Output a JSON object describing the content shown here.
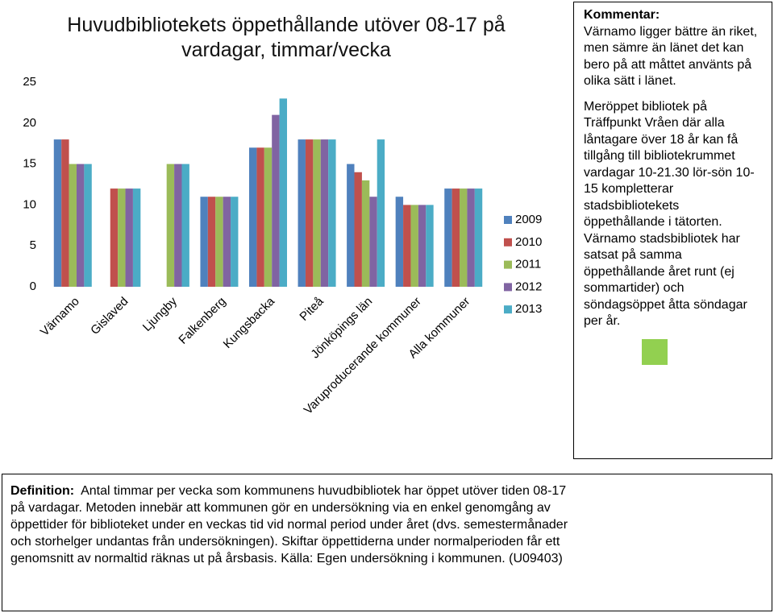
{
  "chart_data": {
    "type": "bar",
    "title": "Huvudbibliotekets öppethållande utöver 08-17 på vardagar, timmar/vecka",
    "categories": [
      "Värnamo",
      "Gislaved",
      "Ljungby",
      "Falkenberg",
      "Kungsbacka",
      "Piteå",
      "Jönköpings län",
      "Varuproducerande kommuner",
      "Alla kommuner"
    ],
    "series": [
      {
        "name": "2009",
        "color": "#4f81bd",
        "values": [
          18,
          null,
          null,
          11,
          17,
          18,
          15,
          11,
          12
        ]
      },
      {
        "name": "2010",
        "color": "#c0504d",
        "values": [
          18,
          12,
          null,
          11,
          17,
          18,
          14,
          10,
          12
        ]
      },
      {
        "name": "2011",
        "color": "#9bbb59",
        "values": [
          15,
          12,
          15,
          11,
          17,
          18,
          13,
          10,
          12
        ]
      },
      {
        "name": "2012",
        "color": "#8064a2",
        "values": [
          15,
          12,
          15,
          11,
          21,
          18,
          11,
          10,
          12
        ]
      },
      {
        "name": "2013",
        "color": "#4bacc6",
        "values": [
          15,
          12,
          15,
          11,
          23,
          18,
          18,
          10,
          12
        ]
      }
    ],
    "ylim": [
      0,
      25
    ],
    "yticks": [
      0,
      5,
      10,
      15,
      20,
      25
    ],
    "grid": false,
    "legend": "right"
  },
  "comment": {
    "heading": "Kommentar:",
    "paragraphs": [
      "Värnamo ligger bättre än riket, men sämre än länet det kan bero på att måttet använts på olika sätt i länet.",
      "Meröppet bibliotek på Träffpunkt Vråen där alla låntagare över 18 år kan få tillgång till bibliotekrummet vardagar 10-21.30 lör-sön  10-15 kompletterar stadsbibliotekets öppethållande i tätorten.",
      "Värnamo stadsbibliotek har satsat på samma öppethållande året runt (ej sommartider) och söndagsöppet åtta söndagar per år."
    ]
  },
  "definition": {
    "heading": "Definition:",
    "text": "Antal timmar per vecka som kommunens huvudbibliotek har öppet utöver tiden 08-17 på vardagar. Metoden innebär att kommunen gör en undersökning via en enkel genomgång av öppettider för biblioteket under en veckas tid vid normal period under året (dvs. semestermånader och storhelger undantas från undersökningen). Skiftar öppettiderna under normalperioden får ett genomsnitt av normaltid räknas ut på årsbasis. Källa: Egen undersökning i kommunen. (U09403)"
  }
}
